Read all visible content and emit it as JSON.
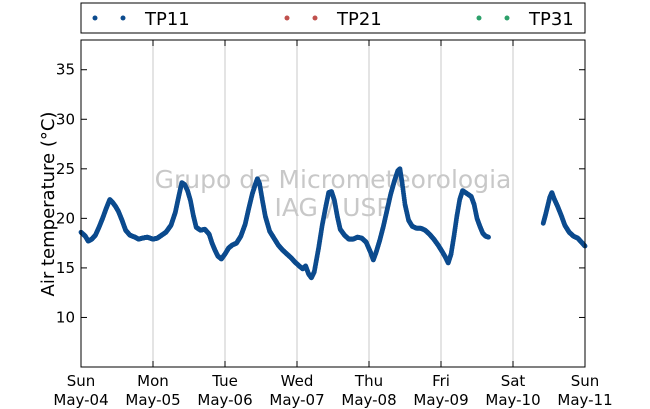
{
  "chart_data": {
    "type": "scatter",
    "title": "",
    "xlabel": "",
    "ylabel": "Air temperature (°C)",
    "ylim": [
      5,
      38
    ],
    "xlim": [
      0,
      7
    ],
    "yticks": [
      10,
      15,
      20,
      25,
      30,
      35
    ],
    "xticks": [
      {
        "x": 0,
        "day": "Sun",
        "date": "May-04"
      },
      {
        "x": 1,
        "day": "Mon",
        "date": "May-05"
      },
      {
        "x": 2,
        "day": "Tue",
        "date": "May-06"
      },
      {
        "x": 3,
        "day": "Wed",
        "date": "May-07"
      },
      {
        "x": 4,
        "day": "Thu",
        "date": "May-08"
      },
      {
        "x": 5,
        "day": "Fri",
        "date": "May-09"
      },
      {
        "x": 6,
        "day": "Sat",
        "date": "May-10"
      },
      {
        "x": 7,
        "day": "Sun",
        "date": "May-11"
      }
    ],
    "grid": "vertical",
    "legend_position": "top",
    "watermark": [
      "Grupo de Micrometeorologia",
      "IAG / USP"
    ],
    "series": [
      {
        "name": "TP11",
        "color": "#0c4b8e",
        "points": [
          [
            0.0,
            18.6
          ],
          [
            0.06,
            18.2
          ],
          [
            0.1,
            17.7
          ],
          [
            0.15,
            17.9
          ],
          [
            0.2,
            18.3
          ],
          [
            0.25,
            19.1
          ],
          [
            0.3,
            20.0
          ],
          [
            0.35,
            21.0
          ],
          [
            0.4,
            21.9
          ],
          [
            0.44,
            21.6
          ],
          [
            0.48,
            21.2
          ],
          [
            0.52,
            20.7
          ],
          [
            0.57,
            19.8
          ],
          [
            0.62,
            18.8
          ],
          [
            0.68,
            18.3
          ],
          [
            0.75,
            18.1
          ],
          [
            0.8,
            17.9
          ],
          [
            0.85,
            18.0
          ],
          [
            0.92,
            18.1
          ],
          [
            1.0,
            17.9
          ],
          [
            1.06,
            18.0
          ],
          [
            1.12,
            18.3
          ],
          [
            1.18,
            18.6
          ],
          [
            1.25,
            19.3
          ],
          [
            1.31,
            20.6
          ],
          [
            1.36,
            22.3
          ],
          [
            1.4,
            23.6
          ],
          [
            1.44,
            23.4
          ],
          [
            1.48,
            22.8
          ],
          [
            1.52,
            21.8
          ],
          [
            1.56,
            20.3
          ],
          [
            1.6,
            19.1
          ],
          [
            1.66,
            18.8
          ],
          [
            1.72,
            18.9
          ],
          [
            1.78,
            18.4
          ],
          [
            1.82,
            17.5
          ],
          [
            1.86,
            16.8
          ],
          [
            1.9,
            16.2
          ],
          [
            1.95,
            15.9
          ],
          [
            2.0,
            16.4
          ],
          [
            2.05,
            17.0
          ],
          [
            2.1,
            17.3
          ],
          [
            2.16,
            17.5
          ],
          [
            2.22,
            18.2
          ],
          [
            2.28,
            19.4
          ],
          [
            2.33,
            21.0
          ],
          [
            2.38,
            22.5
          ],
          [
            2.42,
            23.4
          ],
          [
            2.45,
            24.0
          ],
          [
            2.48,
            23.5
          ],
          [
            2.52,
            21.8
          ],
          [
            2.56,
            20.2
          ],
          [
            2.62,
            18.7
          ],
          [
            2.68,
            18.0
          ],
          [
            2.74,
            17.3
          ],
          [
            2.8,
            16.8
          ],
          [
            2.86,
            16.4
          ],
          [
            2.92,
            16.0
          ],
          [
            2.97,
            15.6
          ],
          [
            3.03,
            15.2
          ],
          [
            3.08,
            14.9
          ],
          [
            3.12,
            15.2
          ],
          [
            3.16,
            14.4
          ],
          [
            3.2,
            14.0
          ],
          [
            3.24,
            14.6
          ],
          [
            3.3,
            17.0
          ],
          [
            3.35,
            19.3
          ],
          [
            3.4,
            21.2
          ],
          [
            3.44,
            22.6
          ],
          [
            3.48,
            22.7
          ],
          [
            3.52,
            21.8
          ],
          [
            3.56,
            20.2
          ],
          [
            3.6,
            18.9
          ],
          [
            3.66,
            18.3
          ],
          [
            3.72,
            17.9
          ],
          [
            3.78,
            17.9
          ],
          [
            3.84,
            18.1
          ],
          [
            3.9,
            18.0
          ],
          [
            3.96,
            17.6
          ],
          [
            4.02,
            16.6
          ],
          [
            4.06,
            15.8
          ],
          [
            4.1,
            16.6
          ],
          [
            4.15,
            17.8
          ],
          [
            4.2,
            19.2
          ],
          [
            4.25,
            20.8
          ],
          [
            4.3,
            22.4
          ],
          [
            4.35,
            23.7
          ],
          [
            4.4,
            24.8
          ],
          [
            4.43,
            25.0
          ],
          [
            4.46,
            23.6
          ],
          [
            4.5,
            21.4
          ],
          [
            4.55,
            19.8
          ],
          [
            4.6,
            19.2
          ],
          [
            4.66,
            19.0
          ],
          [
            4.72,
            19.0
          ],
          [
            4.78,
            18.8
          ],
          [
            4.84,
            18.4
          ],
          [
            4.9,
            17.9
          ],
          [
            4.96,
            17.3
          ],
          [
            5.02,
            16.6
          ],
          [
            5.06,
            16.1
          ],
          [
            5.1,
            15.5
          ],
          [
            5.14,
            16.4
          ],
          [
            5.18,
            18.2
          ],
          [
            5.22,
            20.2
          ],
          [
            5.26,
            21.9
          ],
          [
            5.3,
            22.8
          ],
          [
            5.34,
            22.6
          ],
          [
            5.38,
            22.4
          ],
          [
            5.42,
            22.2
          ],
          [
            5.46,
            21.4
          ],
          [
            5.5,
            20.0
          ],
          [
            5.54,
            19.2
          ],
          [
            5.58,
            18.5
          ],
          [
            5.62,
            18.2
          ],
          [
            5.66,
            18.1
          ],
          [
            6.42,
            19.5
          ],
          [
            6.45,
            20.3
          ],
          [
            6.48,
            21.2
          ],
          [
            6.51,
            22.1
          ],
          [
            6.54,
            22.6
          ],
          [
            6.57,
            22.0
          ],
          [
            6.62,
            21.2
          ],
          [
            6.67,
            20.3
          ],
          [
            6.72,
            19.3
          ],
          [
            6.78,
            18.6
          ],
          [
            6.84,
            18.2
          ],
          [
            6.9,
            18.0
          ],
          [
            6.95,
            17.6
          ],
          [
            7.0,
            17.2
          ]
        ]
      },
      {
        "name": "TP21",
        "color": "#c0504d",
        "points": []
      },
      {
        "name": "TP31",
        "color": "#2ca06a",
        "points": []
      }
    ]
  }
}
